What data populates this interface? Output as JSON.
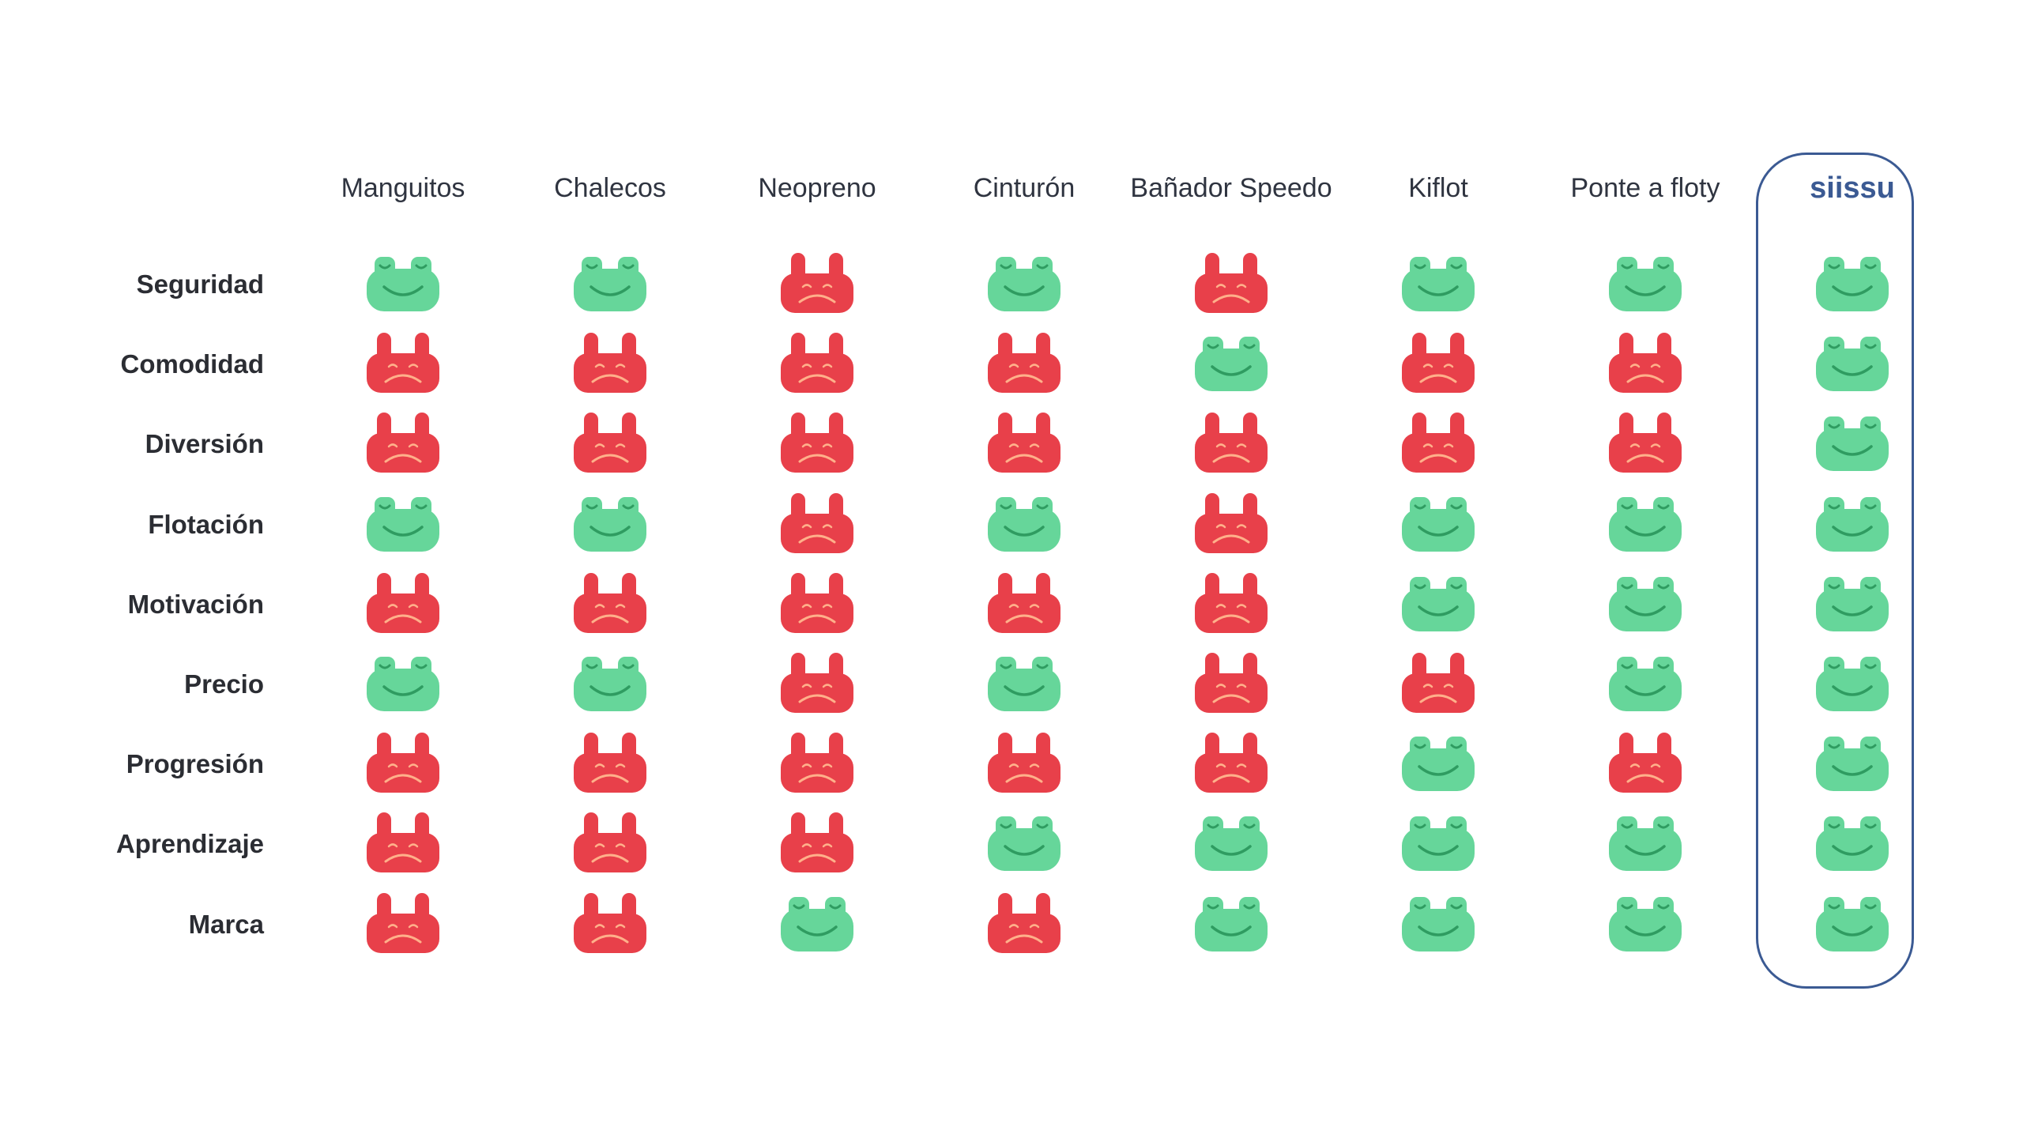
{
  "colors": {
    "good": "#66d69a",
    "good_line": "#2f9c61",
    "bad": "#e8404a",
    "bad_line": "#ffb08a",
    "highlight": "#3b5a93"
  },
  "icons": {
    "good": "happy-frog-icon",
    "bad": "sad-crab-icon"
  },
  "columns": [
    "Manguitos",
    "Chalecos",
    "Neopreno",
    "Cinturón",
    "Bañador Speedo",
    "Kiflot",
    "Ponte a floty",
    "siissu"
  ],
  "highlight_column": "siissu",
  "rows": [
    "Seguridad",
    "Comodidad",
    "Diversión",
    "Flotación",
    "Motivación",
    "Precio",
    "Progresión",
    "Aprendizaje",
    "Marca"
  ],
  "ratings": [
    [
      "good",
      "good",
      "bad",
      "good",
      "bad",
      "good",
      "good",
      "good"
    ],
    [
      "bad",
      "bad",
      "bad",
      "bad",
      "good",
      "bad",
      "bad",
      "good"
    ],
    [
      "bad",
      "bad",
      "bad",
      "bad",
      "bad",
      "bad",
      "bad",
      "good"
    ],
    [
      "good",
      "good",
      "bad",
      "good",
      "bad",
      "good",
      "good",
      "good"
    ],
    [
      "bad",
      "bad",
      "bad",
      "bad",
      "bad",
      "good",
      "good",
      "good"
    ],
    [
      "good",
      "good",
      "bad",
      "good",
      "bad",
      "bad",
      "good",
      "good"
    ],
    [
      "bad",
      "bad",
      "bad",
      "bad",
      "bad",
      "good",
      "bad",
      "good"
    ],
    [
      "bad",
      "bad",
      "bad",
      "good",
      "good",
      "good",
      "good",
      "good"
    ],
    [
      "bad",
      "bad",
      "good",
      "bad",
      "good",
      "good",
      "good",
      "good"
    ]
  ]
}
